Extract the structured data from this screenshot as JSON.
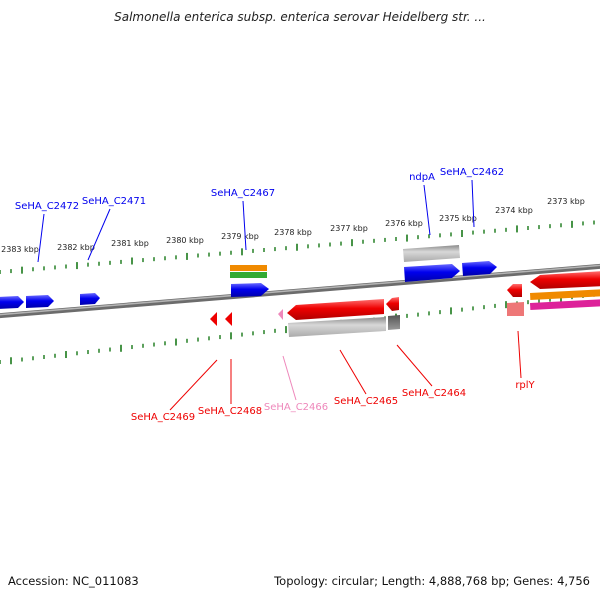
{
  "title": "Salmonella enterica subsp. enterica serovar Heidelberg str. ...",
  "footer": {
    "accession": "Accession: NC_011083",
    "summary": "Topology: circular; Length: 4,888,768 bp; Genes: 4,756"
  },
  "colors": {
    "plus_strand_gene": "#0000ee",
    "minus_strand_gene": "#ee0000",
    "pseudo_gene": "#ee88bb",
    "backbone": "#808080",
    "ticks": "#338833",
    "rna_feature": "#aaaaaa",
    "orange_feature": "#f08a00",
    "green_feature": "#33aa33",
    "magenta_feature": "#dd2299"
  },
  "scale": {
    "unit": "kbp",
    "upper_labels": [
      "2383 kbp",
      "2382 kbp",
      "2381 kbp",
      "2380 kbp",
      "2379 kbp",
      "2378 kbp",
      "2377 kbp",
      "2376 kbp",
      "2375 kbp",
      "2374 kbp",
      "2373 kbp"
    ]
  },
  "gene_labels": [
    {
      "name": "SeHA_C2472",
      "strand": "plus"
    },
    {
      "name": "SeHA_C2471",
      "strand": "plus"
    },
    {
      "name": "SeHA_C2467",
      "strand": "plus"
    },
    {
      "name": "ndpA",
      "strand": "plus"
    },
    {
      "name": "SeHA_C2462",
      "strand": "plus"
    },
    {
      "name": "SeHA_C2469",
      "strand": "minus"
    },
    {
      "name": "SeHA_C2468",
      "strand": "minus"
    },
    {
      "name": "SeHA_C2466",
      "strand": "pseudo"
    },
    {
      "name": "SeHA_C2465",
      "strand": "minus"
    },
    {
      "name": "SeHA_C2464",
      "strand": "minus"
    },
    {
      "name": "rplY",
      "strand": "minus"
    }
  ]
}
